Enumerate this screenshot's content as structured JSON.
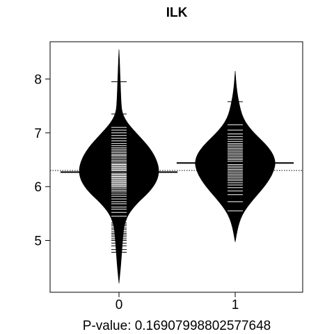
{
  "chart_data": {
    "type": "beanplot",
    "title": "ILK",
    "xlabel": "P-value: 0.16907998802577648",
    "ylabel": "",
    "categories": [
      "0",
      "1"
    ],
    "ylim": [
      4.1,
      8.6
    ],
    "yticks": [
      5,
      6,
      7,
      8
    ],
    "overall_mean": 6.3,
    "groups": [
      {
        "name": "0",
        "mean": 6.27,
        "min": 4.2,
        "max": 8.55,
        "density_profile": [
          [
            4.2,
            0.0
          ],
          [
            4.35,
            0.02
          ],
          [
            4.5,
            0.04
          ],
          [
            4.7,
            0.06
          ],
          [
            4.9,
            0.08
          ],
          [
            5.1,
            0.1
          ],
          [
            5.3,
            0.13
          ],
          [
            5.5,
            0.24
          ],
          [
            5.7,
            0.46
          ],
          [
            5.9,
            0.75
          ],
          [
            6.1,
            0.94
          ],
          [
            6.3,
            1.0
          ],
          [
            6.5,
            0.93
          ],
          [
            6.7,
            0.78
          ],
          [
            6.9,
            0.55
          ],
          [
            7.1,
            0.3
          ],
          [
            7.25,
            0.15
          ],
          [
            7.4,
            0.07
          ],
          [
            7.6,
            0.05
          ],
          [
            7.8,
            0.04
          ],
          [
            8.0,
            0.03
          ],
          [
            8.2,
            0.02
          ],
          [
            8.4,
            0.01
          ],
          [
            8.55,
            0.0
          ]
        ],
        "values": [
          4.78,
          4.83,
          4.9,
          4.95,
          5.0,
          5.03,
          5.07,
          5.1,
          5.13,
          5.16,
          5.2,
          5.23,
          5.27,
          5.3,
          5.33,
          5.38,
          5.45,
          5.52,
          5.58,
          5.62,
          5.68,
          5.72,
          5.77,
          5.82,
          5.86,
          5.9,
          5.93,
          5.96,
          5.99,
          6.01,
          6.03,
          6.05,
          6.07,
          6.09,
          6.11,
          6.13,
          6.15,
          6.17,
          6.19,
          6.21,
          6.23,
          6.25,
          6.27,
          6.29,
          6.31,
          6.33,
          6.35,
          6.37,
          6.39,
          6.41,
          6.43,
          6.46,
          6.49,
          6.52,
          6.55,
          6.58,
          6.6,
          6.63,
          6.66,
          6.69,
          6.72,
          6.76,
          6.8,
          6.85,
          6.9,
          6.95,
          7.0,
          7.05,
          7.1,
          7.2,
          7.35,
          7.95
        ]
      },
      {
        "name": "1",
        "mean": 6.44,
        "min": 4.97,
        "max": 8.15,
        "density_profile": [
          [
            4.97,
            0.0
          ],
          [
            5.1,
            0.03
          ],
          [
            5.25,
            0.07
          ],
          [
            5.4,
            0.13
          ],
          [
            5.55,
            0.23
          ],
          [
            5.7,
            0.38
          ],
          [
            5.85,
            0.55
          ],
          [
            6.0,
            0.72
          ],
          [
            6.15,
            0.86
          ],
          [
            6.3,
            0.96
          ],
          [
            6.45,
            1.0
          ],
          [
            6.6,
            0.94
          ],
          [
            6.75,
            0.8
          ],
          [
            6.9,
            0.6
          ],
          [
            7.05,
            0.4
          ],
          [
            7.2,
            0.25
          ],
          [
            7.35,
            0.16
          ],
          [
            7.5,
            0.11
          ],
          [
            7.65,
            0.07
          ],
          [
            7.8,
            0.04
          ],
          [
            7.95,
            0.02
          ],
          [
            8.05,
            0.01
          ],
          [
            8.15,
            0.0
          ]
        ],
        "values": [
          5.55,
          5.72,
          5.85,
          5.92,
          5.98,
          6.03,
          6.07,
          6.11,
          6.14,
          6.17,
          6.2,
          6.23,
          6.26,
          6.29,
          6.32,
          6.35,
          6.38,
          6.41,
          6.44,
          6.47,
          6.5,
          6.53,
          6.56,
          6.59,
          6.62,
          6.65,
          6.68,
          6.71,
          6.74,
          6.77,
          6.8,
          6.84,
          6.88,
          6.93,
          6.98,
          7.05,
          7.15,
          7.58
        ]
      }
    ],
    "grid": false,
    "legend": "none"
  }
}
